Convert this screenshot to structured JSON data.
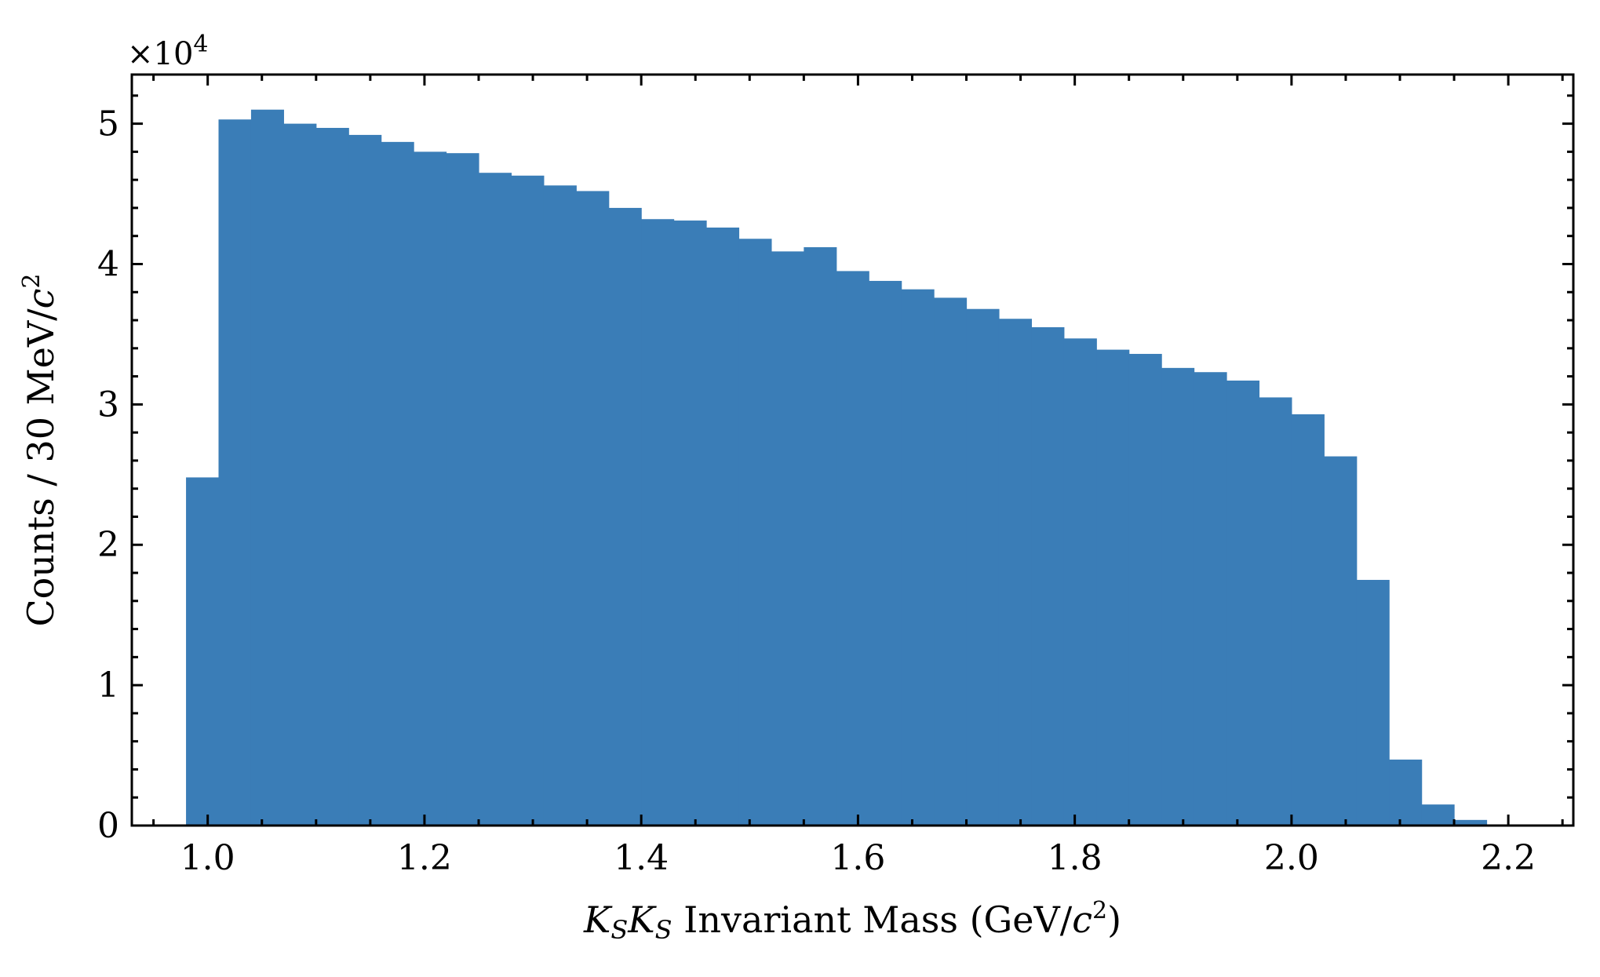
{
  "chart_data": {
    "type": "bar",
    "title": "",
    "xlabel": {
      "k1": "K",
      "sub1": "S",
      "k2": "K",
      "sub2": "S",
      "text": " Invariant Mass (GeV/",
      "c": "c",
      "sup": "2",
      "close": ")"
    },
    "ylabel": {
      "text": "Counts / 30 MeV/",
      "c": "c",
      "sup": "2"
    },
    "y_multiplier": {
      "base": "×10",
      "exponent": "4"
    },
    "xlim": [
      0.93,
      2.26
    ],
    "ylim": [
      0,
      5.35
    ],
    "xticks": [
      {
        "value": 1.0,
        "label": "1.0"
      },
      {
        "value": 1.2,
        "label": "1.2"
      },
      {
        "value": 1.4,
        "label": "1.4"
      },
      {
        "value": 1.6,
        "label": "1.6"
      },
      {
        "value": 1.8,
        "label": "1.8"
      },
      {
        "value": 2.0,
        "label": "2.0"
      },
      {
        "value": 2.2,
        "label": "2.2"
      }
    ],
    "yticks": [
      {
        "value": 0,
        "label": "0"
      },
      {
        "value": 1,
        "label": "1"
      },
      {
        "value": 2,
        "label": "2"
      },
      {
        "value": 3,
        "label": "3"
      },
      {
        "value": 4,
        "label": "4"
      },
      {
        "value": 5,
        "label": "5"
      }
    ],
    "bin_width": 0.03,
    "color": "#3a7db7",
    "bin_edges_start": 0.98,
    "values": [
      2.48,
      5.03,
      5.1,
      5.0,
      4.97,
      4.92,
      4.87,
      4.8,
      4.79,
      4.65,
      4.63,
      4.56,
      4.52,
      4.4,
      4.32,
      4.31,
      4.26,
      4.18,
      4.09,
      4.12,
      3.95,
      3.88,
      3.82,
      3.76,
      3.68,
      3.61,
      3.55,
      3.47,
      3.39,
      3.36,
      3.26,
      3.23,
      3.17,
      3.05,
      2.93,
      2.63,
      1.75,
      0.47,
      0.15,
      0.04
    ],
    "grid": false,
    "legend": "none"
  }
}
